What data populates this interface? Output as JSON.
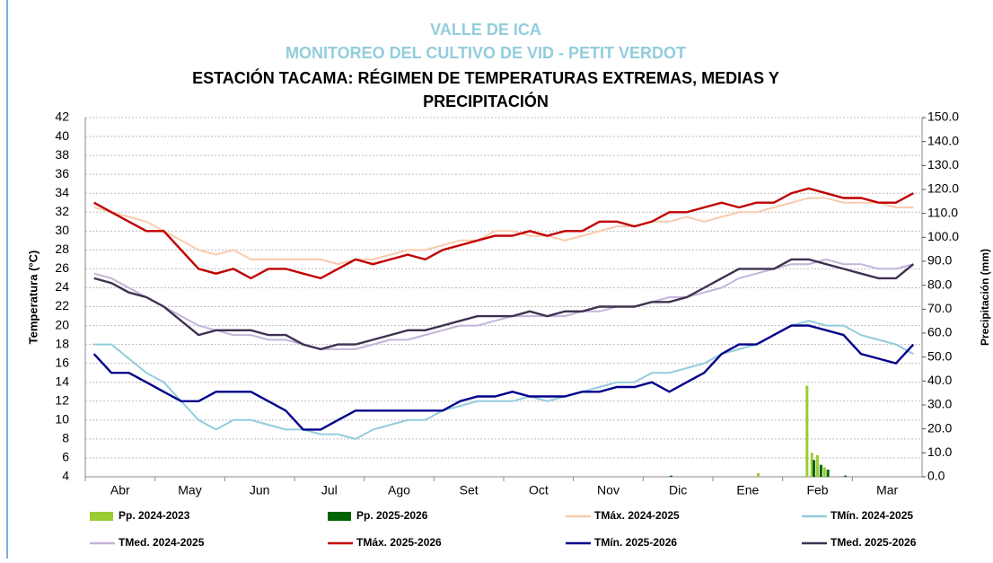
{
  "chart_data": {
    "type": "line",
    "title_lines": [
      "VALLE DE ICA",
      "MONITOREO DEL CULTIVO DE VID - PETIT VERDOT"
    ],
    "title": "ESTACIÓN TACAMA: RÉGIMEN DE TEMPERATURAS EXTREMAS, MEDIAS Y",
    "subtitle": "PRECIPITACIÓN",
    "ylabel": "Temperatura (°C)",
    "y2label": "Precipitación (mm)",
    "xlim": [
      0,
      12
    ],
    "xticks": [
      {
        "value": 0.5,
        "label": "Abr"
      },
      {
        "value": 1.5,
        "label": "May"
      },
      {
        "value": 2.5,
        "label": "Jun"
      },
      {
        "value": 3.5,
        "label": "Jul"
      },
      {
        "value": 4.5,
        "label": "Ago"
      },
      {
        "value": 5.5,
        "label": "Set"
      },
      {
        "value": 6.5,
        "label": "Oct"
      },
      {
        "value": 7.5,
        "label": "Nov"
      },
      {
        "value": 8.5,
        "label": "Dic"
      },
      {
        "value": 9.5,
        "label": "Ene"
      },
      {
        "value": 10.5,
        "label": "Feb"
      },
      {
        "value": 11.5,
        "label": "Mar"
      }
    ],
    "ylim": [
      4,
      42
    ],
    "yticks": [
      4,
      6,
      8,
      10,
      12,
      14,
      16,
      18,
      20,
      22,
      24,
      26,
      28,
      30,
      32,
      34,
      36,
      38,
      40,
      42
    ],
    "y2lim": [
      0,
      150
    ],
    "y2ticks": [
      {
        "value": 0,
        "label": "0.0"
      },
      {
        "value": 10,
        "label": "10.0"
      },
      {
        "value": 20,
        "label": "20.0"
      },
      {
        "value": 30,
        "label": "30.0"
      },
      {
        "value": 40,
        "label": "40.0"
      },
      {
        "value": 50,
        "label": "50.0"
      },
      {
        "value": 60,
        "label": "60.0"
      },
      {
        "value": 70,
        "label": "70.0"
      },
      {
        "value": 80,
        "label": "80.0"
      },
      {
        "value": 90,
        "label": "90.0"
      },
      {
        "value": 100,
        "label": "100.0"
      },
      {
        "value": 110,
        "label": "110.0"
      },
      {
        "value": 120,
        "label": "120.0"
      },
      {
        "value": 130,
        "label": "130.0"
      },
      {
        "value": 140,
        "label": "140.0"
      },
      {
        "value": 150,
        "label": "150.0"
      }
    ],
    "grid": true,
    "x": [
      0.125,
      0.375,
      0.625,
      0.875,
      1.125,
      1.375,
      1.625,
      1.875,
      2.125,
      2.375,
      2.625,
      2.875,
      3.125,
      3.375,
      3.625,
      3.875,
      4.125,
      4.375,
      4.625,
      4.875,
      5.125,
      5.375,
      5.625,
      5.875,
      6.125,
      6.375,
      6.625,
      6.875,
      7.125,
      7.375,
      7.625,
      7.875,
      8.125,
      8.375,
      8.625,
      8.875,
      9.125,
      9.375,
      9.625,
      9.875,
      10.125,
      10.375,
      10.625,
      10.875,
      11.125,
      11.375,
      11.625,
      11.875
    ],
    "series": [
      {
        "name": "Pp. 2024-2023",
        "color": "#9acd32",
        "axis": "y2",
        "x": [
          9.65,
          10.35,
          10.42,
          10.5,
          10.6
        ],
        "values": [
          1.5,
          38,
          10,
          9,
          4
        ]
      },
      {
        "name": "Pp. 2025-2026",
        "color": "#006400",
        "axis": "y2",
        "x": [
          8.4,
          10.45,
          10.55,
          10.65,
          10.9
        ],
        "values": [
          0.5,
          7,
          5,
          3,
          0.5
        ]
      },
      {
        "name": "TMáx. 2024-2025",
        "color": "#f8cbad",
        "values": [
          32.5,
          32,
          31.5,
          31,
          30,
          29,
          28,
          27.5,
          28,
          27,
          27,
          27,
          27,
          27,
          26.5,
          27,
          27,
          27.5,
          28,
          28,
          28.5,
          29,
          29,
          30,
          30,
          29.5,
          29.5,
          29,
          29.5,
          30,
          30.5,
          30.5,
          31,
          31,
          31.5,
          31,
          31.5,
          32,
          32,
          32.5,
          33,
          33.5,
          33.5,
          33,
          33,
          33,
          32.5,
          32.5
        ]
      },
      {
        "name": "TMín. 2024-2025",
        "color": "#92cddc",
        "values": [
          18,
          18,
          16.5,
          15,
          14,
          12,
          10,
          9,
          10,
          10,
          9.5,
          9,
          9,
          8.5,
          8.5,
          8,
          9,
          9.5,
          10,
          10,
          11,
          11.5,
          12,
          12,
          12,
          12.5,
          12,
          12.5,
          13,
          13.5,
          14,
          14,
          15,
          15,
          15.5,
          16,
          17,
          17.5,
          18,
          19,
          20,
          20.5,
          20,
          20,
          19,
          18.5,
          18,
          17
        ]
      },
      {
        "name": "TMed. 2024-2025",
        "color": "#c3b4d8",
        "values": [
          25.5,
          25,
          24,
          23,
          22,
          21,
          20,
          19.5,
          19,
          19,
          18.5,
          18.5,
          18,
          17.5,
          17.5,
          17.5,
          18,
          18.5,
          18.5,
          19,
          19.5,
          20,
          20,
          20.5,
          21,
          21,
          21,
          21,
          21.5,
          21.5,
          22,
          22,
          22.5,
          23,
          23,
          23.5,
          24,
          25,
          25.5,
          26,
          26.5,
          26.5,
          27,
          26.5,
          26.5,
          26,
          26,
          26.5
        ]
      },
      {
        "name": "TMáx. 2025-2026",
        "color": "#c00000",
        "values": [
          33,
          32,
          31,
          30,
          30,
          28,
          26,
          25.5,
          26,
          25,
          26,
          26,
          25.5,
          25,
          26,
          27,
          26.5,
          27,
          27.5,
          27,
          28,
          28.5,
          29,
          29.5,
          29.5,
          30,
          29.5,
          30,
          30,
          31,
          31,
          30.5,
          31,
          32,
          32,
          32.5,
          33,
          32.5,
          33,
          33,
          34,
          34.5,
          34,
          33.5,
          33.5,
          33,
          33,
          34
        ]
      },
      {
        "name": "TMín. 2025-2026",
        "color": "#00008b",
        "values": [
          17,
          15,
          15,
          14,
          13,
          12,
          12,
          13,
          13,
          13,
          12,
          11,
          9,
          9,
          10,
          11,
          11,
          11,
          11,
          11,
          11,
          12,
          12.5,
          12.5,
          13,
          12.5,
          12.5,
          12.5,
          13,
          13,
          13.5,
          13.5,
          14,
          13,
          14,
          15,
          17,
          18,
          18,
          19,
          20,
          20,
          19.5,
          19,
          17,
          16.5,
          16,
          18
        ]
      },
      {
        "name": "TMed. 2025-2026",
        "color": "#3f3151",
        "values": [
          25,
          24.5,
          23.5,
          23,
          22,
          20.5,
          19,
          19.5,
          19.5,
          19.5,
          19,
          19,
          18,
          17.5,
          18,
          18,
          18.5,
          19,
          19.5,
          19.5,
          20,
          20.5,
          21,
          21,
          21,
          21.5,
          21,
          21.5,
          21.5,
          22,
          22,
          22,
          22.5,
          22.5,
          23,
          24,
          25,
          26,
          26,
          26,
          27,
          27,
          26.5,
          26,
          25.5,
          25,
          25,
          26.5
        ]
      }
    ]
  }
}
